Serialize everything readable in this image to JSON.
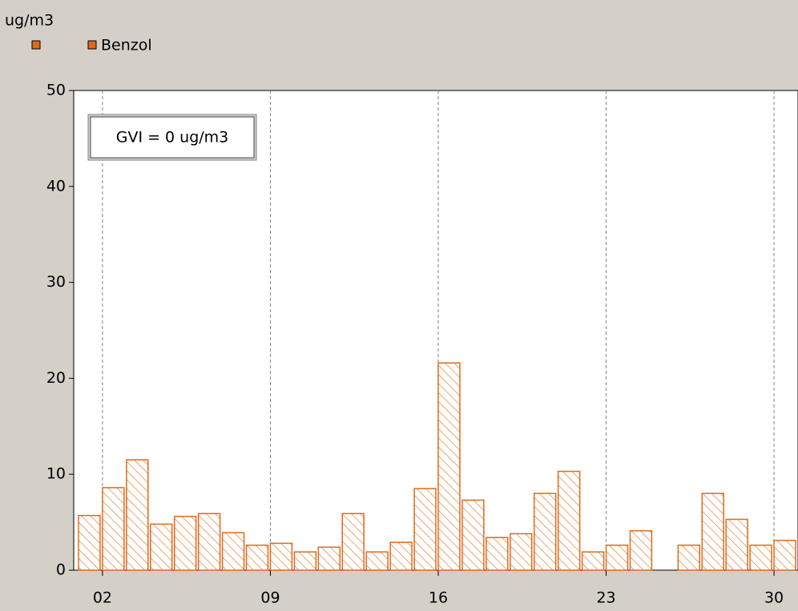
{
  "chart_data": {
    "type": "bar",
    "ylabel": "ug/m3",
    "annotation": "GVI = 0 ug/m3",
    "x": [
      1,
      2,
      3,
      4,
      5,
      6,
      7,
      8,
      9,
      10,
      11,
      12,
      13,
      14,
      15,
      16,
      17,
      18,
      19,
      20,
      21,
      22,
      23,
      24,
      25,
      26,
      27,
      28,
      29,
      30
    ],
    "series": [
      {
        "name": "Benzol",
        "color": "#e06a1a",
        "values": [
          5.7,
          8.6,
          11.5,
          4.8,
          5.6,
          5.9,
          3.9,
          2.6,
          2.8,
          1.9,
          2.4,
          5.9,
          1.9,
          2.9,
          8.5,
          21.6,
          7.3,
          3.4,
          3.8,
          8.0,
          10.3,
          1.9,
          2.6,
          4.1,
          null,
          2.6,
          8.0,
          5.3,
          2.6,
          3.1
        ]
      }
    ],
    "xlim": [
      0.8,
      31
    ],
    "xticks": [
      {
        "value": 2,
        "label": "02"
      },
      {
        "value": 9,
        "label": "09"
      },
      16,
      23,
      30
    ],
    "ylim": [
      0,
      50
    ],
    "yticks": [
      0,
      10,
      20,
      30,
      40,
      50
    ],
    "grid": true
  }
}
